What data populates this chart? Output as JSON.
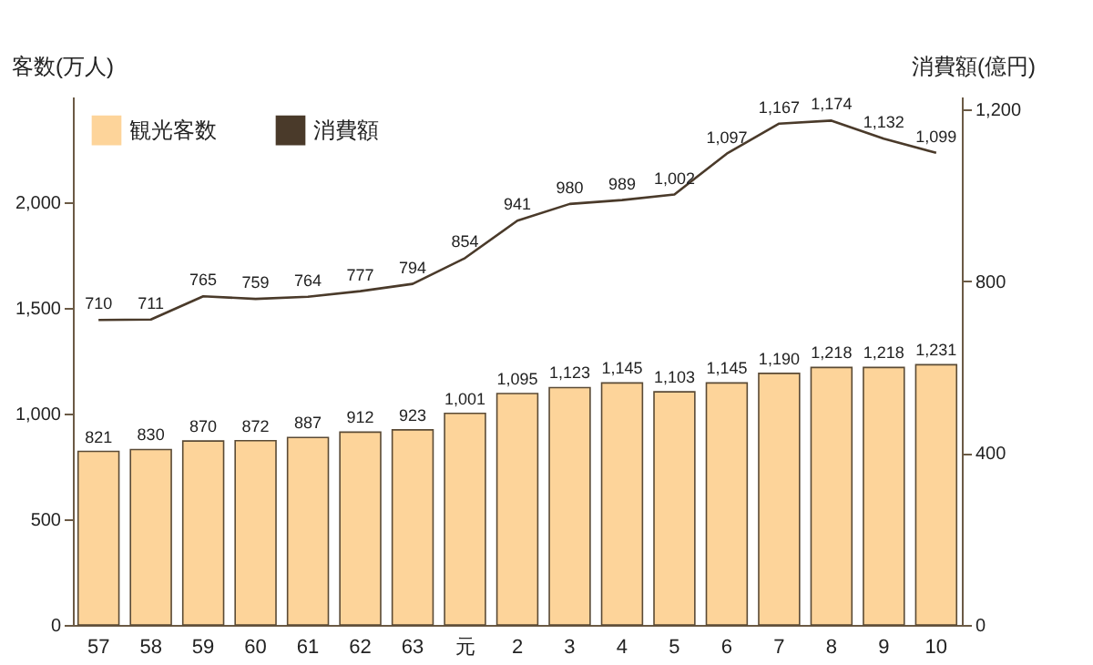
{
  "chart_data": {
    "type": "bar",
    "ylabel": "客数(万人)",
    "y2label": "消費額(億円)",
    "categories": [
      "57",
      "58",
      "59",
      "60",
      "61",
      "62",
      "63",
      "元",
      "2",
      "3",
      "4",
      "5",
      "6",
      "7",
      "8",
      "9",
      "10"
    ],
    "series": [
      {
        "name": "観光客数",
        "color": "#fdd49a",
        "values": [
          821,
          830,
          870,
          872,
          887,
          912,
          923,
          1001,
          1095,
          1123,
          1145,
          1103,
          1145,
          1190,
          1218,
          1218,
          1231
        ],
        "value_labels": [
          "821",
          "830",
          "870",
          "872",
          "887",
          "912",
          "923",
          "1,001",
          "1,095",
          "1,123",
          "1,145",
          "1,103",
          "1,145",
          "1,190",
          "1,218",
          "1,218",
          "1,231"
        ]
      },
      {
        "name": "消費額",
        "type": "line",
        "axis": "y2",
        "color": "#4a3a2a",
        "values": [
          710,
          711,
          765,
          759,
          764,
          777,
          794,
          854,
          941,
          980,
          989,
          1002,
          1097,
          1167,
          1174,
          1132,
          1099
        ],
        "value_labels": [
          "710",
          "711",
          "765",
          "759",
          "764",
          "777",
          "794",
          "854",
          "941",
          "980",
          "989",
          "1,002",
          "1,097",
          "1,167",
          "1,174",
          "1,132",
          "1,099"
        ]
      }
    ],
    "ylim": [
      0,
      2500
    ],
    "yticks": [
      0,
      500,
      {
        "value": 1000,
        "label": "1,000"
      },
      {
        "value": 1500,
        "label": "1,500"
      },
      {
        "value": 2000,
        "label": "2,000"
      }
    ],
    "y2lim": [
      0,
      1230
    ],
    "y2ticks": [
      0,
      400,
      800,
      {
        "value": 1200,
        "label": "1,200"
      }
    ],
    "legend": "top left",
    "grid": false,
    "marker": "none"
  }
}
